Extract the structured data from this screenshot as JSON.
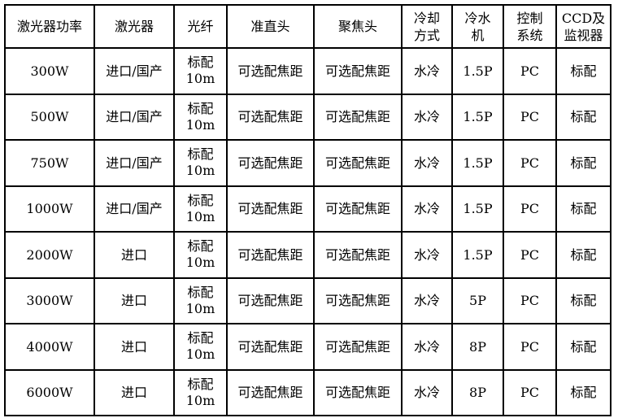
{
  "headers": [
    "激光器功率",
    "激光器",
    "光纤",
    "准直头",
    "聚焦头",
    "冷却\n方式",
    "冷水\n机",
    "控制\n系统",
    "CCD及\n监视器"
  ],
  "rows": [
    [
      "300W",
      "进口/国产",
      "标配\n10m",
      "可选配焦距",
      "可选配焦距",
      "水冷",
      "1.5P",
      "PC",
      "标配"
    ],
    [
      "500W",
      "进口/国产",
      "标配\n10m",
      "可选配焦距",
      "可选配焦距",
      "水冷",
      "1.5P",
      "PC",
      "标配"
    ],
    [
      "750W",
      "进口/国产",
      "标配\n10m",
      "可选配焦距",
      "可选配焦距",
      "水冷",
      "1.5P",
      "PC",
      "标配"
    ],
    [
      "1000W",
      "进口/国产",
      "标配\n10m",
      "可选配焦距",
      "可选配焦距",
      "水冷",
      "1.5P",
      "PC",
      "标配"
    ],
    [
      "2000W",
      "进口",
      "标配\n10m",
      "可选配焦距",
      "可选配焦距",
      "水冷",
      "1.5P",
      "PC",
      "标配"
    ],
    [
      "3000W",
      "进口",
      "标配\n10m",
      "可选配焦距",
      "可选配焦距",
      "水冷",
      "5P",
      "PC",
      "标配"
    ],
    [
      "4000W",
      "进口",
      "标配\n10m",
      "可选配焦距",
      "可选配焦距",
      "水冷",
      "8P",
      "PC",
      "标配"
    ],
    [
      "6000W",
      "进口",
      "标配\n10m",
      "可选配焦距",
      "可选配焦距",
      "水冷",
      "8P",
      "PC",
      "标配"
    ]
  ]
}
